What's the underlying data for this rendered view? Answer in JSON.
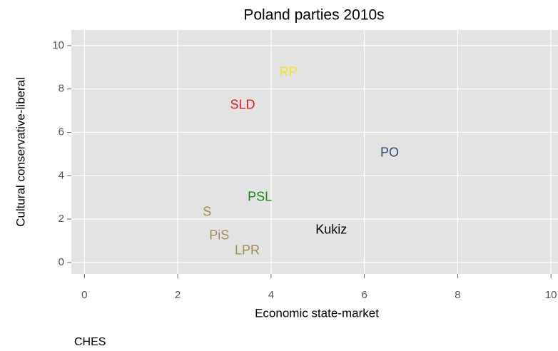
{
  "chart_data": {
    "type": "scatter",
    "title": "Poland parties 2010s",
    "x_label": "Economic state-market",
    "y_label": "Cultural conservative-liberal",
    "caption": "CHES",
    "points": [
      {
        "label": "RP",
        "x": 4.37,
        "y": 8.75,
        "color": "#f2e41c"
      },
      {
        "label": "SLD",
        "x": 3.39,
        "y": 7.24,
        "color": "#e31a1c"
      },
      {
        "label": "PO",
        "x": 6.54,
        "y": 5.03,
        "color": "#2b4a72"
      },
      {
        "label": "PSL",
        "x": 3.76,
        "y": 2.99,
        "color": "#1a871a"
      },
      {
        "label": "S",
        "x": 2.63,
        "y": 2.3,
        "color": "#a08c55"
      },
      {
        "label": "Kukiz",
        "x": 5.29,
        "y": 1.48,
        "color": "#000000"
      },
      {
        "label": "PiS",
        "x": 2.89,
        "y": 1.22,
        "color": "#a08c55"
      },
      {
        "label": "LPR",
        "x": 3.49,
        "y": 0.53,
        "color": "#a08c55"
      }
    ],
    "xlim": [
      -0.28,
      10.15
    ],
    "ylim": [
      -0.53,
      10.72
    ],
    "xticks": [
      0,
      2,
      4,
      6,
      8,
      10
    ],
    "yticks": [
      0,
      2,
      4,
      6,
      8,
      10
    ],
    "grid": true
  }
}
